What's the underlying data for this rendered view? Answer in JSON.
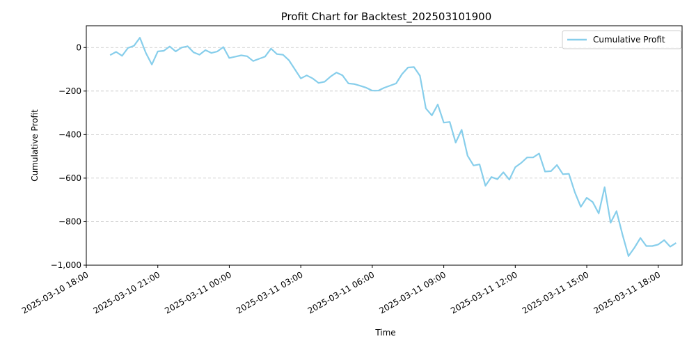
{
  "chart_data": {
    "type": "line",
    "title": "Profit Chart for Backtest_202503101900",
    "xlabel": "Time",
    "ylabel": "Cumulative Profit",
    "legend_position": "top-right",
    "grid": "y-dashed",
    "line_color": "#87CEEB",
    "xlim": [
      "2025-03-10 18:00",
      "2025-03-11 19:00"
    ],
    "ylim": [
      -1000,
      100
    ],
    "x_ticks": [
      {
        "t": "2025-03-10 18:00",
        "label": "2025-03-10 18:00"
      },
      {
        "t": "2025-03-10 21:00",
        "label": "2025-03-10 21:00"
      },
      {
        "t": "2025-03-11 00:00",
        "label": "2025-03-11 00:00"
      },
      {
        "t": "2025-03-11 03:00",
        "label": "2025-03-11 03:00"
      },
      {
        "t": "2025-03-11 06:00",
        "label": "2025-03-11 06:00"
      },
      {
        "t": "2025-03-11 09:00",
        "label": "2025-03-11 09:00"
      },
      {
        "t": "2025-03-11 12:00",
        "label": "2025-03-11 12:00"
      },
      {
        "t": "2025-03-11 15:00",
        "label": "2025-03-11 15:00"
      },
      {
        "t": "2025-03-11 18:00",
        "label": "2025-03-11 18:00"
      }
    ],
    "y_ticks": [
      {
        "v": 0,
        "label": "0"
      },
      {
        "v": -200,
        "label": "−200"
      },
      {
        "v": -400,
        "label": "−400"
      },
      {
        "v": -600,
        "label": "−600"
      },
      {
        "v": -800,
        "label": "−800"
      },
      {
        "v": -1000,
        "label": "−1,000"
      }
    ],
    "series": [
      {
        "name": "Cumulative Profit",
        "x": [
          "2025-03-10 19:00",
          "2025-03-10 19:15",
          "2025-03-10 19:30",
          "2025-03-10 19:45",
          "2025-03-10 20:00",
          "2025-03-10 20:15",
          "2025-03-10 20:30",
          "2025-03-10 20:45",
          "2025-03-10 21:00",
          "2025-03-10 21:15",
          "2025-03-10 21:30",
          "2025-03-10 21:45",
          "2025-03-10 22:00",
          "2025-03-10 22:15",
          "2025-03-10 22:30",
          "2025-03-10 22:45",
          "2025-03-10 23:00",
          "2025-03-10 23:15",
          "2025-03-10 23:30",
          "2025-03-10 23:45",
          "2025-03-11 00:00",
          "2025-03-11 00:15",
          "2025-03-11 00:30",
          "2025-03-11 00:45",
          "2025-03-11 01:00",
          "2025-03-11 01:15",
          "2025-03-11 01:30",
          "2025-03-11 01:45",
          "2025-03-11 02:00",
          "2025-03-11 02:15",
          "2025-03-11 02:30",
          "2025-03-11 02:45",
          "2025-03-11 03:00",
          "2025-03-11 03:15",
          "2025-03-11 03:30",
          "2025-03-11 03:45",
          "2025-03-11 04:00",
          "2025-03-11 04:15",
          "2025-03-11 04:30",
          "2025-03-11 04:45",
          "2025-03-11 05:00",
          "2025-03-11 05:15",
          "2025-03-11 05:30",
          "2025-03-11 05:45",
          "2025-03-11 06:00",
          "2025-03-11 06:15",
          "2025-03-11 06:30",
          "2025-03-11 06:45",
          "2025-03-11 07:00",
          "2025-03-11 07:15",
          "2025-03-11 07:30",
          "2025-03-11 07:45",
          "2025-03-11 08:00",
          "2025-03-11 08:15",
          "2025-03-11 08:30",
          "2025-03-11 08:45",
          "2025-03-11 09:00",
          "2025-03-11 09:15",
          "2025-03-11 09:30",
          "2025-03-11 09:45",
          "2025-03-11 10:00",
          "2025-03-11 10:15",
          "2025-03-11 10:30",
          "2025-03-11 10:45",
          "2025-03-11 11:00",
          "2025-03-11 11:15",
          "2025-03-11 11:30",
          "2025-03-11 11:45",
          "2025-03-11 12:00",
          "2025-03-11 12:15",
          "2025-03-11 12:30",
          "2025-03-11 12:45",
          "2025-03-11 13:00",
          "2025-03-11 13:15",
          "2025-03-11 13:30",
          "2025-03-11 13:45",
          "2025-03-11 14:00",
          "2025-03-11 14:15",
          "2025-03-11 14:30",
          "2025-03-11 14:45",
          "2025-03-11 15:00",
          "2025-03-11 15:15",
          "2025-03-11 15:30",
          "2025-03-11 15:45",
          "2025-03-11 16:00",
          "2025-03-11 16:15",
          "2025-03-11 16:30",
          "2025-03-11 16:45",
          "2025-03-11 17:00",
          "2025-03-11 17:15",
          "2025-03-11 17:30",
          "2025-03-11 17:45",
          "2025-03-11 18:00",
          "2025-03-11 18:15",
          "2025-03-11 18:30",
          "2025-03-11 18:45"
        ],
        "values": [
          -35,
          -20,
          -38,
          -2,
          8,
          45,
          -25,
          -78,
          -18,
          -15,
          5,
          -18,
          0,
          6,
          -22,
          -33,
          -12,
          -25,
          -18,
          2,
          -48,
          -42,
          -36,
          -40,
          -62,
          -52,
          -42,
          -5,
          -30,
          -33,
          -58,
          -100,
          -142,
          -128,
          -142,
          -163,
          -157,
          -133,
          -115,
          -128,
          -165,
          -168,
          -176,
          -185,
          -198,
          -198,
          -185,
          -175,
          -165,
          -122,
          -92,
          -90,
          -130,
          -280,
          -312,
          -262,
          -345,
          -342,
          -437,
          -378,
          -497,
          -542,
          -537,
          -635,
          -595,
          -605,
          -573,
          -607,
          -550,
          -530,
          -505,
          -505,
          -487,
          -570,
          -568,
          -540,
          -582,
          -580,
          -665,
          -732,
          -690,
          -710,
          -762,
          -642,
          -805,
          -752,
          -860,
          -958,
          -920,
          -875,
          -912,
          -912,
          -905,
          -885,
          -915,
          -898
        ]
      }
    ]
  }
}
